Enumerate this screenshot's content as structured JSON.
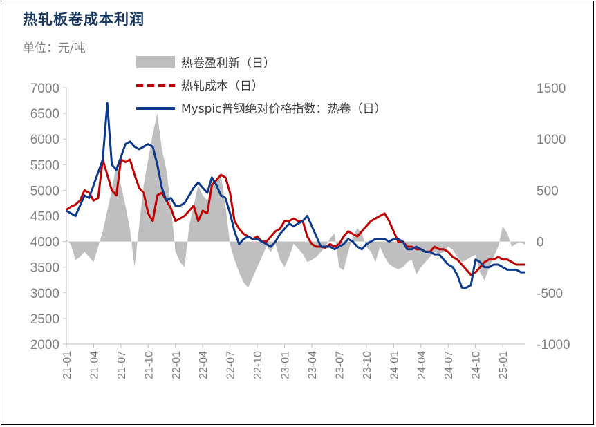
{
  "title": "热轧板卷成本利润",
  "unit_label": "单位：元/吨",
  "colors": {
    "title": "#17375e",
    "profit_bar": "#bfbfbf",
    "cost_line": "#c00000",
    "index_line": "#0b3a8c",
    "axis_text": "#7f7f7f"
  },
  "chart_data": {
    "type": "line",
    "title": "热轧板卷成本利润",
    "ylabel": "",
    "y_left_lim": [
      2000,
      7000
    ],
    "y_left_ticks": [
      "7000",
      "6500",
      "6000",
      "5500",
      "5000",
      "4500",
      "4000",
      "3500",
      "3000",
      "2500",
      "2000"
    ],
    "y_right_lim": [
      -1000,
      1500
    ],
    "y_right_ticks": [
      "1500",
      "1000",
      "500",
      "0",
      "-500",
      "-1000"
    ],
    "x_tick_labels": [
      "21-01",
      "21-04",
      "21-07",
      "21-10",
      "22-01",
      "22-04",
      "22-07",
      "22-10",
      "23-01",
      "23-04",
      "23-07",
      "23-10",
      "24-01",
      "24-04",
      "24-07",
      "24-10",
      "25-01"
    ],
    "legend_position": "top-center",
    "x_months": [
      0,
      0.5,
      1,
      1.5,
      2,
      2.5,
      3,
      3.5,
      4,
      4.5,
      5,
      5.5,
      6,
      6.5,
      7,
      7.5,
      8,
      8.5,
      9,
      9.5,
      10,
      10.5,
      11,
      11.5,
      12,
      12.5,
      13,
      13.5,
      14,
      14.5,
      15,
      15.5,
      16,
      16.5,
      17,
      17.5,
      18,
      18.5,
      19,
      19.5,
      20,
      20.5,
      21,
      21.5,
      22,
      22.5,
      23,
      23.5,
      24,
      24.5,
      25,
      25.5,
      26,
      26.5,
      27,
      27.5,
      28,
      28.5,
      29,
      29.5,
      30,
      30.5,
      31,
      31.5,
      32,
      32.5,
      33,
      33.5,
      34,
      34.5,
      35,
      35.5,
      36,
      36.5,
      37,
      37.5,
      38,
      38.5,
      39,
      39.5,
      40,
      40.5,
      41,
      41.5,
      42,
      42.5,
      43,
      43.5,
      44,
      44.5,
      45,
      45.5,
      46,
      46.5,
      47,
      47.5,
      48,
      48.5,
      49,
      49.5,
      50,
      50.5
    ],
    "series": [
      {
        "name": "热卷盈利新（日）",
        "type": "area",
        "axis": "right",
        "values": [
          20,
          -30,
          -180,
          -150,
          -100,
          -150,
          -200,
          -50,
          100,
          300,
          500,
          750,
          550,
          350,
          120,
          -250,
          150,
          550,
          800,
          1050,
          1250,
          900,
          700,
          350,
          -100,
          -200,
          -250,
          150,
          350,
          550,
          450,
          400,
          550,
          600,
          650,
          350,
          -30,
          -180,
          -300,
          -400,
          -450,
          -350,
          -250,
          -150,
          -50,
          -100,
          -20,
          -180,
          -250,
          -150,
          -20,
          -70,
          -120,
          -200,
          -180,
          -150,
          -100,
          -50,
          30,
          80,
          -250,
          -280,
          -100,
          50,
          130,
          80,
          -50,
          -100,
          -200,
          -50,
          -150,
          -220,
          -250,
          -270,
          -250,
          -200,
          -180,
          -320,
          -250,
          -200,
          -150,
          -100,
          -120,
          -100,
          -50,
          -80,
          -150,
          -200,
          -180,
          -150,
          -130,
          -300,
          -380,
          -250,
          -150,
          -50,
          150,
          80,
          -50,
          -20,
          -10,
          -30
        ]
      },
      {
        "name": "热轧成本（日）",
        "type": "line",
        "axis": "left",
        "values": [
          4620,
          4680,
          4720,
          4800,
          5000,
          4950,
          4800,
          4850,
          5600,
          5300,
          5000,
          4900,
          5600,
          5550,
          5600,
          5300,
          5050,
          4950,
          4550,
          4400,
          4900,
          4950,
          4800,
          4650,
          4400,
          4450,
          4500,
          4600,
          4700,
          4400,
          4600,
          4550,
          5100,
          5200,
          5300,
          5250,
          4950,
          4400,
          4250,
          4150,
          4100,
          4050,
          4100,
          4000,
          4000,
          4100,
          4200,
          4250,
          4400,
          4400,
          4450,
          4400,
          4400,
          4100,
          3950,
          3900,
          3900,
          3880,
          3950,
          3900,
          3950,
          4100,
          4200,
          4150,
          4100,
          4200,
          4300,
          4400,
          4450,
          4500,
          4550,
          4400,
          4200,
          4000,
          4000,
          3900,
          3900,
          3850,
          3850,
          3800,
          3800,
          3900,
          3850,
          3850,
          3800,
          3700,
          3650,
          3550,
          3450,
          3350,
          3400,
          3500,
          3600,
          3650,
          3650,
          3700,
          3650,
          3650,
          3600,
          3550,
          3550,
          3550
        ]
      },
      {
        "name": "Myspic普钢绝对价格指数：热卷（日）",
        "type": "line",
        "axis": "left",
        "values": [
          4600,
          4550,
          4500,
          4700,
          4900,
          4850,
          5100,
          5350,
          5600,
          6700,
          5500,
          5400,
          5650,
          5900,
          5950,
          5850,
          5800,
          5850,
          5900,
          5850,
          5500,
          5050,
          4800,
          4850,
          4700,
          4700,
          4750,
          4900,
          5050,
          5150,
          5050,
          4950,
          5250,
          5100,
          4900,
          4850,
          4550,
          4200,
          3950,
          4050,
          4100,
          4050,
          4050,
          4000,
          3950,
          3900,
          4000,
          4150,
          4250,
          4350,
          4300,
          4350,
          4400,
          4500,
          4300,
          4100,
          3900,
          3900,
          3900,
          3850,
          3900,
          3950,
          4050,
          4000,
          3900,
          3850,
          3950,
          4000,
          4050,
          4050,
          4050,
          4000,
          4050,
          4050,
          4000,
          3850,
          3850,
          3900,
          3850,
          3800,
          3800,
          3750,
          3750,
          3650,
          3550,
          3500,
          3350,
          3100,
          3100,
          3150,
          3650,
          3600,
          3500,
          3500,
          3550,
          3550,
          3500,
          3450,
          3450,
          3450,
          3400,
          3400
        ]
      }
    ]
  },
  "legend": [
    {
      "label": "热卷盈利新（日）"
    },
    {
      "label": "热轧成本（日）"
    },
    {
      "label": "Myspic普钢绝对价格指数：热卷（日）"
    }
  ]
}
